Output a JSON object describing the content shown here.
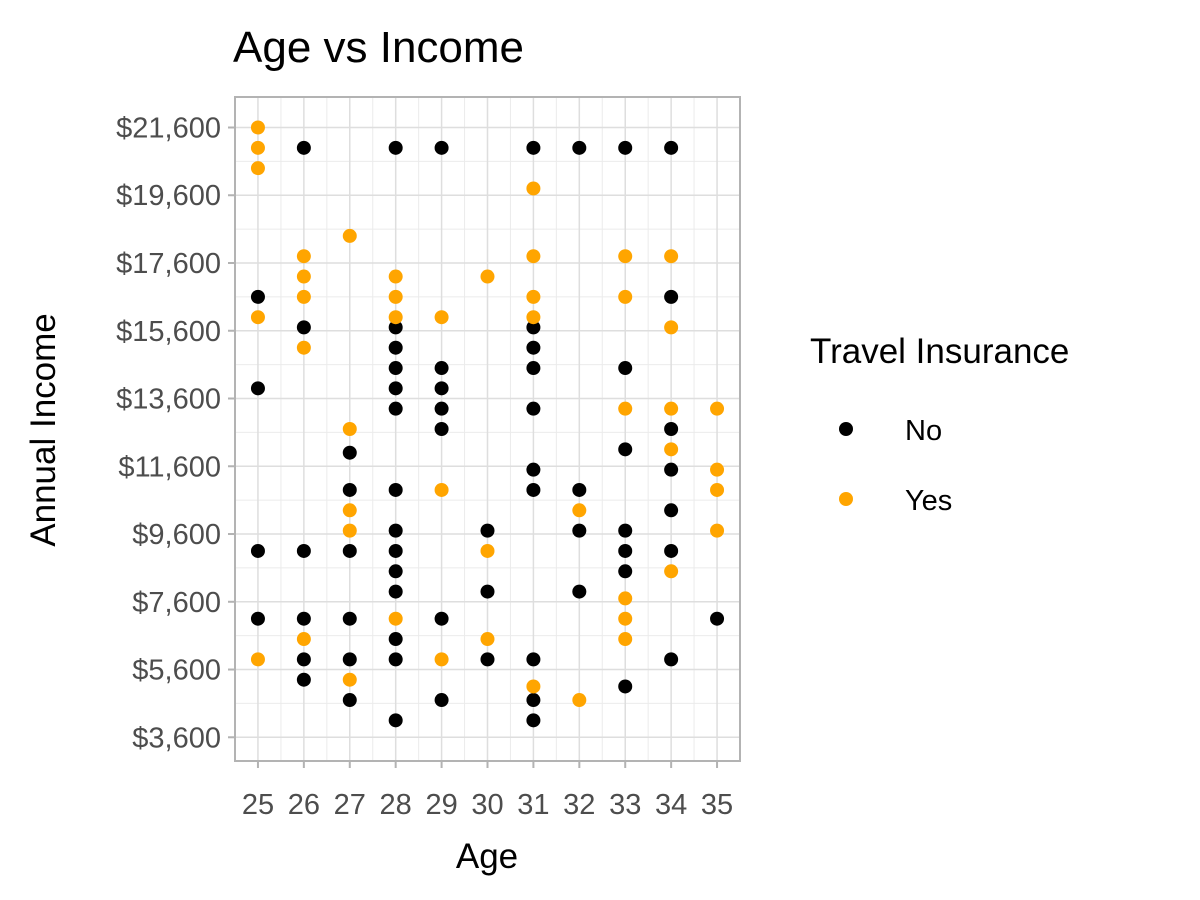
{
  "chart_data": {
    "type": "scatter",
    "title": "Age vs Income",
    "xlabel": "Age",
    "ylabel": "Annual Income",
    "xlim": [
      24.5,
      35.5
    ],
    "ylim": [
      2900,
      22500
    ],
    "x_ticks": [
      25,
      26,
      27,
      28,
      29,
      30,
      31,
      32,
      33,
      34,
      35
    ],
    "y_ticks": [
      3600,
      5600,
      7600,
      9600,
      11600,
      13600,
      15600,
      17600,
      19600,
      21600
    ],
    "y_tick_labels": [
      "$3,600",
      "$5,600",
      "$7,600",
      "$9,600",
      "$11,600",
      "$13,600",
      "$15,600",
      "$17,600",
      "$19,600",
      "$21,600"
    ],
    "grid": true,
    "legend": {
      "title": "Travel Insurance",
      "position": "right",
      "entries": [
        "No",
        "Yes"
      ]
    },
    "series": [
      {
        "name": "No",
        "color": "#000000",
        "points": [
          [
            25,
            16600
          ],
          [
            25,
            13900
          ],
          [
            25,
            9100
          ],
          [
            25,
            7100
          ],
          [
            26,
            21000
          ],
          [
            26,
            15700
          ],
          [
            26,
            9100
          ],
          [
            26,
            7100
          ],
          [
            26,
            5900
          ],
          [
            26,
            5300
          ],
          [
            27,
            12000
          ],
          [
            27,
            10900
          ],
          [
            27,
            9100
          ],
          [
            27,
            7100
          ],
          [
            27,
            5900
          ],
          [
            27,
            4700
          ],
          [
            28,
            21000
          ],
          [
            28,
            15700
          ],
          [
            28,
            15100
          ],
          [
            28,
            14500
          ],
          [
            28,
            13900
          ],
          [
            28,
            13300
          ],
          [
            28,
            10900
          ],
          [
            28,
            9700
          ],
          [
            28,
            9100
          ],
          [
            28,
            8500
          ],
          [
            28,
            7900
          ],
          [
            28,
            6500
          ],
          [
            28,
            5900
          ],
          [
            28,
            4100
          ],
          [
            29,
            21000
          ],
          [
            29,
            14500
          ],
          [
            29,
            13900
          ],
          [
            29,
            13300
          ],
          [
            29,
            12700
          ],
          [
            29,
            7100
          ],
          [
            29,
            4700
          ],
          [
            30,
            9700
          ],
          [
            30,
            7900
          ],
          [
            30,
            5900
          ],
          [
            31,
            21000
          ],
          [
            31,
            15700
          ],
          [
            31,
            15100
          ],
          [
            31,
            14500
          ],
          [
            31,
            13300
          ],
          [
            31,
            11500
          ],
          [
            31,
            10900
          ],
          [
            31,
            5900
          ],
          [
            31,
            4700
          ],
          [
            31,
            4100
          ],
          [
            32,
            21000
          ],
          [
            32,
            10900
          ],
          [
            32,
            9700
          ],
          [
            32,
            7900
          ],
          [
            33,
            21000
          ],
          [
            33,
            14500
          ],
          [
            33,
            12100
          ],
          [
            33,
            9700
          ],
          [
            33,
            9100
          ],
          [
            33,
            8500
          ],
          [
            33,
            5100
          ],
          [
            34,
            21000
          ],
          [
            34,
            16600
          ],
          [
            34,
            12700
          ],
          [
            34,
            11500
          ],
          [
            34,
            10300
          ],
          [
            34,
            9100
          ],
          [
            34,
            5900
          ],
          [
            35,
            7100
          ]
        ]
      },
      {
        "name": "Yes",
        "color": "#FFA500",
        "points": [
          [
            25,
            21600
          ],
          [
            25,
            21000
          ],
          [
            25,
            20400
          ],
          [
            25,
            16000
          ],
          [
            25,
            5900
          ],
          [
            26,
            17800
          ],
          [
            26,
            17200
          ],
          [
            26,
            16600
          ],
          [
            26,
            15100
          ],
          [
            26,
            6500
          ],
          [
            27,
            18400
          ],
          [
            27,
            12700
          ],
          [
            27,
            10300
          ],
          [
            27,
            9700
          ],
          [
            27,
            5300
          ],
          [
            28,
            17200
          ],
          [
            28,
            16600
          ],
          [
            28,
            16000
          ],
          [
            28,
            7100
          ],
          [
            29,
            16000
          ],
          [
            29,
            10900
          ],
          [
            29,
            5900
          ],
          [
            30,
            17200
          ],
          [
            30,
            9100
          ],
          [
            30,
            6500
          ],
          [
            31,
            19800
          ],
          [
            31,
            17800
          ],
          [
            31,
            16600
          ],
          [
            31,
            16000
          ],
          [
            31,
            5100
          ],
          [
            32,
            10300
          ],
          [
            32,
            4700
          ],
          [
            33,
            17800
          ],
          [
            33,
            16600
          ],
          [
            33,
            13300
          ],
          [
            33,
            7700
          ],
          [
            33,
            7100
          ],
          [
            33,
            6500
          ],
          [
            34,
            17800
          ],
          [
            34,
            15700
          ],
          [
            34,
            13300
          ],
          [
            34,
            12100
          ],
          [
            34,
            8500
          ],
          [
            35,
            13300
          ],
          [
            35,
            11500
          ],
          [
            35,
            10900
          ],
          [
            35,
            9700
          ]
        ]
      }
    ]
  }
}
